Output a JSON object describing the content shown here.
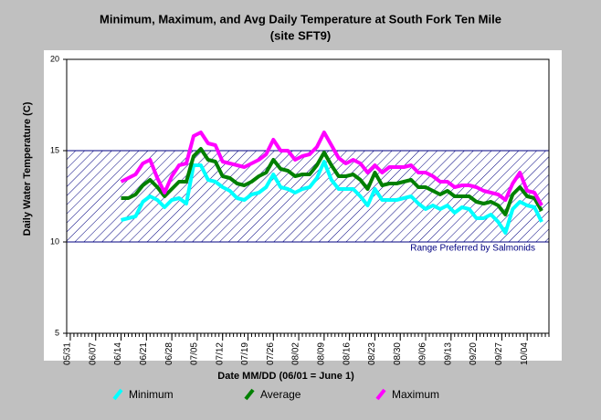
{
  "chart_data": {
    "type": "line",
    "title": "Minimum, Maximum, and Avg Daily Temperature at South Fork Ten Mile",
    "subtitle": "(site SFT9)",
    "x_label": "Date MM/DD (06/01 = June 1)",
    "y_label": "Daily Water Temperature (C)",
    "categories": [
      "06/14",
      "06/16",
      "06/18",
      "06/20",
      "06/22",
      "06/24",
      "06/26",
      "06/28",
      "06/30",
      "07/02",
      "07/04",
      "07/06",
      "07/08",
      "07/10",
      "07/12",
      "07/14",
      "07/16",
      "07/18",
      "07/20",
      "07/22",
      "07/24",
      "07/26",
      "07/28",
      "07/30",
      "08/01",
      "08/03",
      "08/05",
      "08/07",
      "08/09",
      "08/11",
      "08/13",
      "08/15",
      "08/17",
      "08/19",
      "08/21",
      "08/23",
      "08/25",
      "08/27",
      "08/29",
      "08/31",
      "09/02",
      "09/04",
      "09/06",
      "09/08",
      "09/10",
      "09/12",
      "09/14",
      "09/16",
      "09/18",
      "09/20",
      "09/22",
      "09/24",
      "09/26",
      "09/28",
      "09/30",
      "10/02",
      "10/04",
      "10/06",
      "10/08"
    ],
    "series": [
      {
        "name": "Minimum",
        "color": "#00ffff",
        "values": [
          11.2,
          11.3,
          11.4,
          12.2,
          12.5,
          12.3,
          11.9,
          12.3,
          12.4,
          12.1,
          14.2,
          14.2,
          13.4,
          13.3,
          13.0,
          12.8,
          12.4,
          12.3,
          12.6,
          12.7,
          13.0,
          13.7,
          13.0,
          12.9,
          12.7,
          12.9,
          13.0,
          13.5,
          14.4,
          13.4,
          12.9,
          12.9,
          12.9,
          12.5,
          12.0,
          12.9,
          12.3,
          12.3,
          12.3,
          12.4,
          12.5,
          12.1,
          11.8,
          12.0,
          11.8,
          12.0,
          11.6,
          11.9,
          11.8,
          11.3,
          11.3,
          11.5,
          11.1,
          10.5,
          11.8,
          12.2,
          12.0,
          11.9,
          11.1
        ]
      },
      {
        "name": "Average",
        "color": "#008000",
        "values": [
          12.4,
          12.4,
          12.6,
          13.1,
          13.4,
          13.0,
          12.5,
          12.9,
          13.3,
          13.3,
          14.7,
          15.1,
          14.5,
          14.4,
          13.6,
          13.5,
          13.2,
          13.1,
          13.3,
          13.6,
          13.8,
          14.5,
          14.0,
          13.9,
          13.6,
          13.7,
          13.7,
          14.2,
          14.9,
          14.2,
          13.6,
          13.6,
          13.7,
          13.4,
          12.9,
          13.8,
          13.1,
          13.2,
          13.2,
          13.3,
          13.4,
          13.0,
          13.0,
          12.8,
          12.6,
          12.8,
          12.5,
          12.5,
          12.5,
          12.2,
          12.1,
          12.2,
          12.0,
          11.5,
          12.6,
          13.0,
          12.5,
          12.4,
          11.7
        ]
      },
      {
        "name": "Maximum",
        "color": "#ff00ff",
        "values": [
          13.3,
          13.5,
          13.7,
          14.3,
          14.5,
          13.5,
          12.7,
          13.6,
          14.2,
          14.3,
          15.8,
          16.0,
          15.4,
          15.3,
          14.4,
          14.3,
          14.2,
          14.1,
          14.3,
          14.5,
          14.8,
          15.6,
          15.0,
          15.0,
          14.5,
          14.7,
          14.8,
          15.2,
          16.0,
          15.3,
          14.6,
          14.3,
          14.5,
          14.3,
          13.8,
          14.2,
          13.8,
          14.1,
          14.1,
          14.1,
          14.2,
          13.8,
          13.8,
          13.6,
          13.3,
          13.3,
          13.0,
          13.1,
          13.1,
          13.0,
          12.8,
          12.7,
          12.6,
          12.3,
          13.2,
          13.8,
          12.8,
          12.7,
          12.0
        ]
      }
    ],
    "xlim": [
      "05/30",
      "10/10"
    ],
    "xticks": [
      "05/31",
      "06/07",
      "06/14",
      "06/21",
      "06/28",
      "07/05",
      "07/12",
      "07/19",
      "07/26",
      "08/02",
      "08/09",
      "08/16",
      "08/23",
      "08/30",
      "09/06",
      "09/13",
      "09/20",
      "09/27",
      "10/04"
    ],
    "ylim": [
      5,
      20
    ],
    "yticks": [
      5,
      10,
      15,
      20
    ],
    "band": {
      "range": [
        10,
        15
      ],
      "label": "Range Preferred by Salmonids",
      "color": "#000080"
    },
    "grid": false
  }
}
